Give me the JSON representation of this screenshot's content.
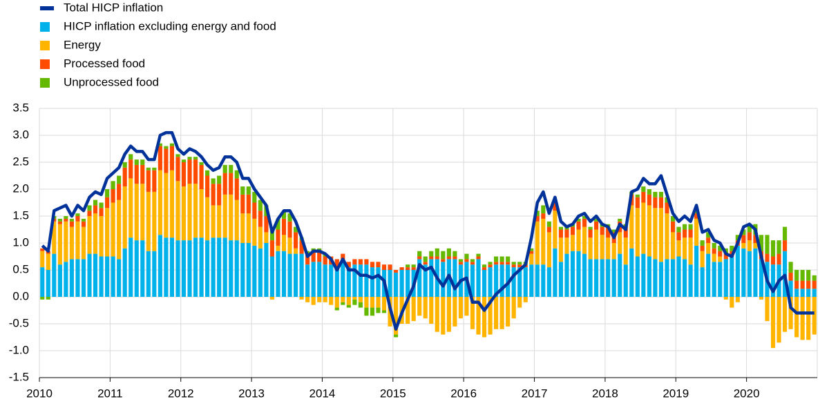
{
  "chart_data": {
    "type": "bar",
    "categories": [
      "2010",
      null,
      null,
      null,
      null,
      null,
      null,
      null,
      null,
      null,
      null,
      null,
      "2011",
      null,
      null,
      null,
      null,
      null,
      null,
      null,
      null,
      null,
      null,
      null,
      "2012",
      null,
      null,
      null,
      null,
      null,
      null,
      null,
      null,
      null,
      null,
      null,
      "2013",
      null,
      null,
      null,
      null,
      null,
      null,
      null,
      null,
      null,
      null,
      null,
      "2014",
      null,
      null,
      null,
      null,
      null,
      null,
      null,
      null,
      null,
      null,
      null,
      "2015",
      null,
      null,
      null,
      null,
      null,
      null,
      null,
      null,
      null,
      null,
      null,
      "2016",
      null,
      null,
      null,
      null,
      null,
      null,
      null,
      null,
      null,
      null,
      null,
      "2017",
      null,
      null,
      null,
      null,
      null,
      null,
      null,
      null,
      null,
      null,
      null,
      "2018",
      null,
      null,
      null,
      null,
      null,
      null,
      null,
      null,
      null,
      null,
      null,
      "2019",
      null,
      null,
      null,
      null,
      null,
      null,
      null,
      null,
      null,
      null,
      null,
      "2020",
      null,
      null,
      null,
      null,
      null,
      null,
      null,
      null,
      null,
      null,
      null
    ],
    "ylim": [
      -1.5,
      3.5
    ],
    "yticks": [
      3.5,
      {
        "value": 3,
        "label": "3.0"
      },
      2.5,
      {
        "value": 2,
        "label": "2.0"
      },
      1.5,
      {
        "value": 1,
        "label": "1.0"
      },
      0.5,
      {
        "value": 0,
        "label": "0.0"
      },
      -0.5,
      {
        "value": -1,
        "label": "-1.0"
      },
      -1.5
    ],
    "grid": true,
    "series": [
      {
        "name": "Total HICP inflation",
        "type": "line",
        "color": "#003299",
        "values": [
          0.95,
          0.85,
          1.6,
          1.65,
          1.7,
          1.5,
          1.7,
          1.6,
          1.85,
          1.95,
          1.9,
          2.2,
          2.3,
          2.4,
          2.65,
          2.8,
          2.7,
          2.7,
          2.55,
          2.55,
          3.0,
          3.05,
          3.05,
          2.75,
          2.65,
          2.75,
          2.7,
          2.6,
          2.45,
          2.35,
          2.4,
          2.6,
          2.6,
          2.5,
          2.2,
          2.2,
          2.0,
          1.85,
          1.7,
          1.2,
          1.45,
          1.6,
          1.6,
          1.4,
          1.1,
          0.75,
          0.85,
          0.85,
          0.8,
          0.7,
          0.5,
          0.7,
          0.5,
          0.5,
          0.4,
          0.4,
          0.35,
          0.4,
          0.3,
          -0.2,
          -0.6,
          -0.3,
          -0.05,
          0.2,
          0.6,
          0.5,
          0.55,
          0.35,
          0.2,
          0.4,
          0.15,
          0.3,
          0.35,
          -0.1,
          -0.1,
          -0.25,
          -0.1,
          0.05,
          0.15,
          0.25,
          0.4,
          0.5,
          0.6,
          1.1,
          1.75,
          1.95,
          1.55,
          1.85,
          1.4,
          1.3,
          1.35,
          1.5,
          1.55,
          1.4,
          1.5,
          1.35,
          1.3,
          1.1,
          1.35,
          1.25,
          1.95,
          2.0,
          2.2,
          2.1,
          2.1,
          2.25,
          1.9,
          1.55,
          1.4,
          1.5,
          1.4,
          1.7,
          1.2,
          1.25,
          1.05,
          1.0,
          0.8,
          0.75,
          1.0,
          1.3,
          1.35,
          1.25,
          0.75,
          0.3,
          0.1,
          0.3,
          0.4,
          -0.2,
          -0.3,
          -0.3,
          -0.3,
          -0.3
        ]
      },
      {
        "name": "HICP inflation excluding energy and food",
        "color": "#00b1ea",
        "values": [
          0.55,
          0.5,
          0.8,
          0.6,
          0.65,
          0.7,
          0.7,
          0.7,
          0.8,
          0.8,
          0.75,
          0.75,
          0.75,
          0.7,
          0.9,
          1.1,
          1.05,
          1.05,
          0.85,
          0.85,
          1.15,
          1.1,
          1.1,
          1.05,
          1.05,
          1.05,
          1.1,
          1.1,
          1.05,
          1.1,
          1.1,
          1.1,
          1.05,
          1.05,
          1.0,
          1.0,
          0.95,
          0.9,
          1.0,
          0.75,
          0.85,
          0.85,
          0.8,
          0.8,
          0.8,
          0.6,
          0.65,
          0.65,
          0.6,
          0.6,
          0.55,
          0.7,
          0.55,
          0.6,
          0.6,
          0.6,
          0.55,
          0.55,
          0.5,
          0.5,
          0.45,
          0.5,
          0.5,
          0.5,
          0.7,
          0.6,
          0.7,
          0.7,
          0.65,
          0.7,
          0.7,
          0.6,
          0.65,
          0.6,
          0.7,
          0.5,
          0.55,
          0.6,
          0.6,
          0.6,
          0.55,
          0.55,
          0.55,
          0.6,
          0.6,
          0.6,
          0.55,
          0.9,
          0.65,
          0.8,
          0.85,
          0.85,
          0.8,
          0.7,
          0.7,
          0.7,
          0.7,
          0.7,
          0.8,
          0.6,
          0.9,
          0.75,
          0.8,
          0.75,
          0.7,
          0.65,
          0.7,
          0.7,
          0.75,
          0.7,
          0.6,
          0.95,
          0.55,
          0.8,
          0.65,
          0.65,
          0.7,
          0.75,
          0.95,
          0.9,
          0.85,
          0.9,
          0.7,
          0.65,
          0.6,
          0.6,
          0.85,
          0.3,
          0.15,
          0.15,
          0.15,
          0.15
        ]
      },
      {
        "name": "Energy",
        "color": "#ffb400",
        "values": [
          0.3,
          0.3,
          0.6,
          0.75,
          0.75,
          0.6,
          0.7,
          0.6,
          0.7,
          0.75,
          0.75,
          0.9,
          1.0,
          1.1,
          1.15,
          1.1,
          1.05,
          1.05,
          1.1,
          1.1,
          1.2,
          1.2,
          1.25,
          1.1,
          1.0,
          1.05,
          1.0,
          0.9,
          0.8,
          0.6,
          0.6,
          0.8,
          0.85,
          0.75,
          0.55,
          0.55,
          0.5,
          0.4,
          0.2,
          -0.05,
          0.1,
          0.3,
          0.3,
          0.1,
          -0.05,
          -0.1,
          -0.15,
          -0.1,
          -0.1,
          -0.15,
          -0.2,
          -0.1,
          -0.15,
          -0.05,
          -0.1,
          -0.2,
          -0.2,
          -0.2,
          -0.25,
          -0.55,
          -0.7,
          -0.5,
          -0.5,
          -0.45,
          -0.35,
          -0.4,
          -0.5,
          -0.65,
          -0.7,
          -0.65,
          -0.55,
          -0.4,
          -0.35,
          -0.6,
          -0.7,
          -0.75,
          -0.7,
          -0.6,
          -0.6,
          -0.55,
          -0.4,
          -0.2,
          -0.1,
          0.2,
          0.8,
          0.85,
          0.65,
          0.7,
          0.45,
          0.3,
          0.3,
          0.4,
          0.5,
          0.4,
          0.55,
          0.45,
          0.4,
          0.3,
          0.4,
          0.5,
          0.8,
          0.9,
          0.95,
          0.95,
          0.95,
          1.0,
          0.85,
          0.5,
          0.3,
          0.4,
          0.5,
          0.5,
          0.3,
          0.2,
          0.15,
          0.1,
          -0.05,
          -0.2,
          -0.1,
          0.1,
          0.2,
          0.1,
          -0.05,
          -0.45,
          -0.95,
          -0.85,
          -0.65,
          -0.6,
          -0.75,
          -0.8,
          -0.8,
          -0.7
        ]
      },
      {
        "name": "Processed food",
        "color": "#ff4b00",
        "values": [
          0.05,
          0.05,
          0.05,
          0.05,
          0.05,
          0.1,
          0.1,
          0.1,
          0.1,
          0.15,
          0.15,
          0.2,
          0.25,
          0.3,
          0.35,
          0.35,
          0.35,
          0.35,
          0.4,
          0.4,
          0.45,
          0.45,
          0.45,
          0.45,
          0.45,
          0.45,
          0.45,
          0.45,
          0.4,
          0.4,
          0.4,
          0.4,
          0.4,
          0.4,
          0.35,
          0.35,
          0.3,
          0.3,
          0.3,
          0.3,
          0.3,
          0.3,
          0.3,
          0.3,
          0.25,
          0.2,
          0.2,
          0.2,
          0.15,
          0.15,
          0.15,
          0.1,
          0.1,
          0.1,
          0.1,
          0.1,
          0.1,
          0.1,
          0.1,
          0.1,
          0.05,
          0.05,
          0.05,
          0.05,
          0.05,
          0.05,
          0.05,
          0.05,
          0.05,
          0.05,
          0.05,
          0.05,
          0.05,
          0.05,
          0.05,
          0.05,
          0.05,
          0.05,
          0.05,
          0.05,
          0.05,
          0.05,
          0.05,
          0.05,
          0.1,
          0.1,
          0.1,
          0.15,
          0.15,
          0.15,
          0.15,
          0.15,
          0.15,
          0.15,
          0.15,
          0.15,
          0.2,
          0.2,
          0.2,
          0.2,
          0.2,
          0.2,
          0.2,
          0.2,
          0.2,
          0.2,
          0.2,
          0.2,
          0.15,
          0.15,
          0.15,
          0.1,
          0.1,
          0.1,
          0.1,
          0.1,
          0.1,
          0.1,
          0.1,
          0.15,
          0.15,
          0.15,
          0.15,
          0.15,
          0.15,
          0.2,
          0.2,
          0.15,
          0.15,
          0.15,
          0.15,
          0.15
        ]
      },
      {
        "name": "Unprocessed food",
        "color": "#65b800",
        "values": [
          -0.05,
          -0.05,
          0.05,
          0.05,
          0.05,
          0.05,
          0.05,
          0.05,
          0.1,
          0.1,
          0.1,
          0.15,
          0.15,
          0.15,
          0.1,
          0.1,
          0.1,
          0.1,
          0.05,
          0.05,
          0.05,
          0.05,
          0.05,
          0.05,
          0.05,
          0.05,
          0.05,
          0.05,
          0.1,
          0.1,
          0.15,
          0.15,
          0.15,
          0.15,
          0.15,
          0.15,
          0.2,
          0.2,
          0.2,
          0.2,
          0.2,
          0.15,
          0.15,
          0.1,
          0.05,
          0.05,
          0.05,
          0.05,
          0.05,
          0,
          -0.05,
          -0.05,
          -0.05,
          -0.1,
          -0.1,
          -0.15,
          -0.15,
          -0.1,
          -0.05,
          0,
          -0.05,
          0,
          0.05,
          0.05,
          0.1,
          0.1,
          0.1,
          0.15,
          0.15,
          0.15,
          0.1,
          0.05,
          0.1,
          0.05,
          0.05,
          0.05,
          0.05,
          0.1,
          0.1,
          0.1,
          0.05,
          0.05,
          0.05,
          0.05,
          0.1,
          0.15,
          0.1,
          0.05,
          0.05,
          0.05,
          0.05,
          0.05,
          0.05,
          0.05,
          0.05,
          0.05,
          0.05,
          0.05,
          0.05,
          0.05,
          0.05,
          0.05,
          0.1,
          0.1,
          0.1,
          0.1,
          0.1,
          0.1,
          0.1,
          0.1,
          0.1,
          0.1,
          0.1,
          0.1,
          0.1,
          0.1,
          0.1,
          0.1,
          0.1,
          0.1,
          0.15,
          0.2,
          0.3,
          0.35,
          0.3,
          0.25,
          0.25,
          0.2,
          0.2,
          0.2,
          0.2,
          0.1
        ]
      }
    ]
  }
}
